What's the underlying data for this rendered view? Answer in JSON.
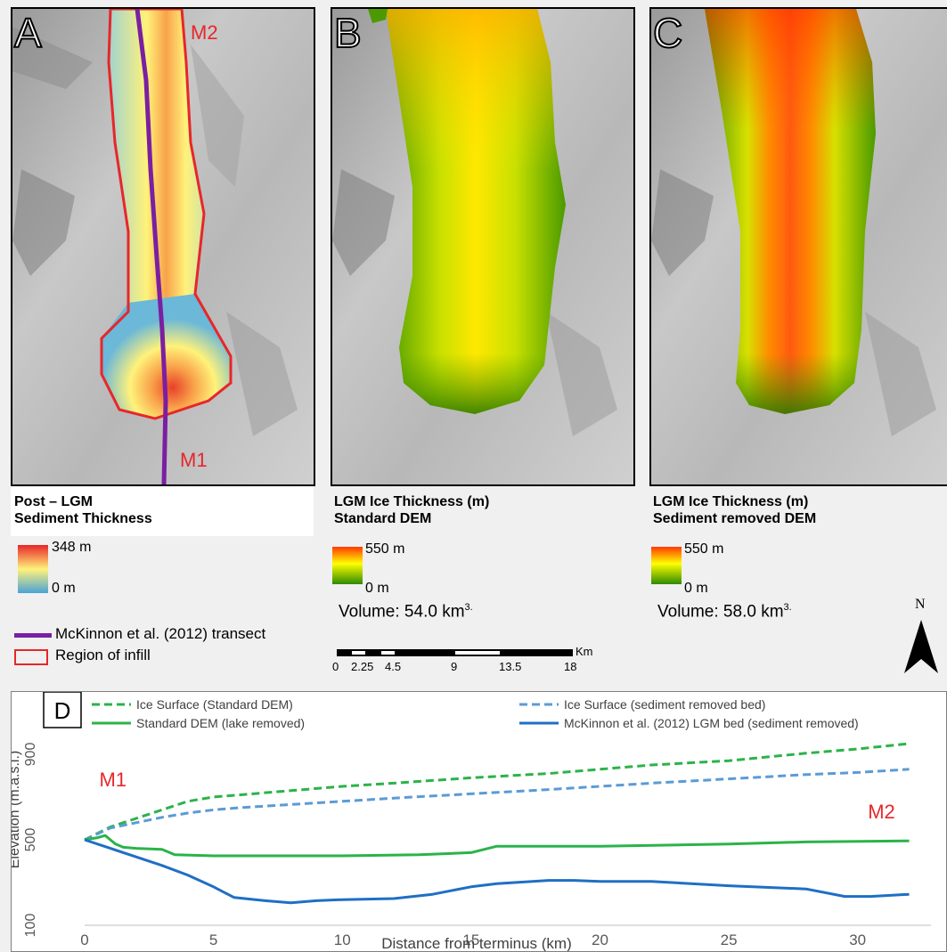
{
  "panels": [
    {
      "label": "A",
      "marker_top": "M2",
      "marker_bottom": "M1",
      "legend_title_1": "Post – LGM",
      "legend_title_2": "Sediment Thickness",
      "scale_max": "348 m",
      "scale_min": "0 m",
      "colors": {
        "max": "#e8262a",
        "mid": "#fff27a",
        "min": "#4aa3d6"
      }
    },
    {
      "label": "B",
      "legend_title_1": "LGM Ice Thickness (m)",
      "legend_title_2": "Standard DEM",
      "scale_max": "550 m",
      "scale_min": "0 m",
      "volume": "Volume: 54.0 km",
      "volume_sup": "3.",
      "colors": {
        "max": "#ff3a00",
        "mid": "#ffff00",
        "min": "#2e8a00"
      }
    },
    {
      "label": "C",
      "legend_title_1": "LGM Ice Thickness (m)",
      "legend_title_2": "Sediment removed DEM",
      "scale_max": "550 m",
      "scale_min": "0 m",
      "volume": "Volume: 58.0 km",
      "volume_sup": "3.",
      "colors": {
        "max": "#ff3a00",
        "mid": "#ffff00",
        "min": "#2e8a00"
      }
    }
  ],
  "legend": {
    "transect": "McKinnon et al. (2012) transect",
    "infill": "Region of infill",
    "transect_color": "#7b1fa2",
    "infill_color": "#e8262a"
  },
  "scalebar": {
    "unit": "Km",
    "ticks": [
      "0",
      "2.25",
      "4.5",
      "9",
      "13.5",
      "18"
    ]
  },
  "north_label": "N",
  "chart_data": {
    "type": "line",
    "panel_label": "D",
    "xlabel": "Distance from terminus (km)",
    "ylabel": "Elevation (m.a.s.l.)",
    "xlim": [
      0,
      32.5
    ],
    "ylim": [
      100,
      1100
    ],
    "xticks": [
      0,
      5,
      10,
      15,
      20,
      25,
      30
    ],
    "yticks": [
      100,
      500,
      900
    ],
    "annotations": [
      {
        "text": "M1",
        "x": 0.5,
        "y": 750
      },
      {
        "text": "M2",
        "x": 31.8,
        "y": 600
      }
    ],
    "series": [
      {
        "name": "Ice Surface (Standard DEM)",
        "color": "#2bb34a",
        "dash": true,
        "x": [
          0,
          1,
          2,
          3,
          4,
          5,
          6,
          8,
          10,
          12,
          15,
          18,
          20,
          22,
          25,
          28,
          30,
          32
        ],
        "y": [
          500,
          560,
          600,
          640,
          680,
          700,
          710,
          730,
          750,
          765,
          790,
          810,
          830,
          850,
          870,
          905,
          925,
          950
        ]
      },
      {
        "name": "Ice Surface (sediment removed bed)",
        "color": "#5b9bd5",
        "dash": true,
        "x": [
          0,
          1,
          2,
          3,
          4,
          5,
          6,
          8,
          10,
          12,
          15,
          18,
          20,
          22,
          25,
          28,
          30,
          32
        ],
        "y": [
          500,
          555,
          580,
          605,
          625,
          640,
          650,
          665,
          680,
          695,
          715,
          735,
          750,
          765,
          785,
          805,
          815,
          830
        ]
      },
      {
        "name": "Standard DEM (lake removed)",
        "color": "#2bb34a",
        "dash": false,
        "x": [
          0,
          0.5,
          0.8,
          1.2,
          1.5,
          2,
          3,
          3.5,
          5,
          8,
          10,
          13,
          15,
          16,
          20,
          25,
          28,
          32
        ],
        "y": [
          500,
          510,
          520,
          480,
          465,
          460,
          455,
          430,
          425,
          425,
          425,
          430,
          440,
          470,
          470,
          480,
          490,
          495
        ]
      },
      {
        "name": "McKinnon et al. (2012) LGM bed (sediment removed)",
        "color": "#1f6fc4",
        "dash": false,
        "x": [
          0,
          1,
          2,
          3,
          4,
          5,
          5.8,
          7,
          8,
          9,
          10,
          12,
          13.5,
          15,
          16,
          18,
          19,
          20,
          22,
          25,
          28,
          29.5,
          30.5,
          32
        ],
        "y": [
          500,
          460,
          420,
          380,
          335,
          280,
          230,
          215,
          205,
          215,
          220,
          225,
          245,
          280,
          295,
          310,
          310,
          305,
          305,
          285,
          270,
          235,
          235,
          245
        ]
      }
    ]
  }
}
